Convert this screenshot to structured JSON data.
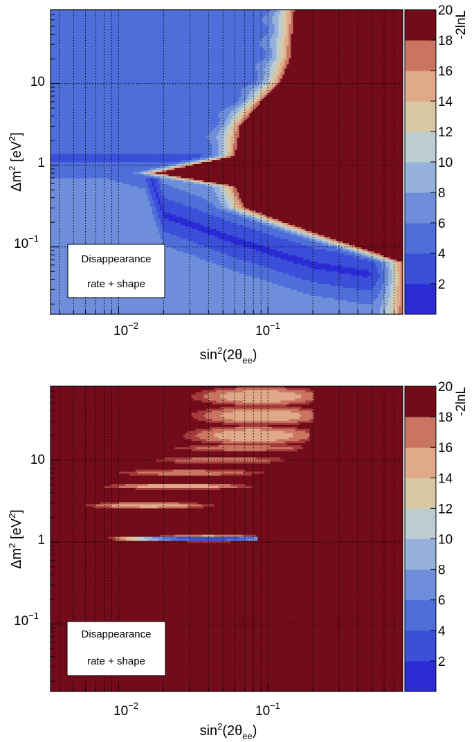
{
  "colors": {
    "excluded": "#730C1A",
    "frame": "#000000",
    "grid": "#000000",
    "legend_bg": "#ffffff"
  },
  "colorbar": {
    "label": "-2lnL",
    "ticks": [
      "2",
      "4",
      "6",
      "8",
      "10",
      "12",
      "14",
      "16",
      "18",
      "20"
    ],
    "range": [
      0,
      20
    ],
    "levels": [
      "#2B2BD6",
      "#3B4FD9",
      "#4F6ED9",
      "#6E8EDB",
      "#96B2DC",
      "#BCCDCF",
      "#D8C7A3",
      "#DFA98A",
      "#C97562",
      "#A53B3B",
      "#730C1A"
    ]
  },
  "chart_data": [
    {
      "type": "heatmap",
      "title": "",
      "xlabel": "sin²(2θee)",
      "ylabel": "Δm² [eV²]",
      "xscale": "log",
      "yscale": "log",
      "xlim": [
        0.0035,
        0.8
      ],
      "ylim": [
        0.015,
        80
      ],
      "xticks": [
        {
          "value": 0.01,
          "base": "10",
          "exp": "−2"
        },
        {
          "value": 0.1,
          "base": "10",
          "exp": "−1"
        }
      ],
      "yticks": [
        {
          "value": 0.1,
          "base": "10",
          "exp": "−1"
        },
        {
          "value": 1,
          "base": "1",
          "exp": ""
        },
        {
          "value": 10,
          "base": "10",
          "exp": ""
        }
      ],
      "legend": [
        "Disappearance",
        "rate + shape"
      ],
      "legend_placement": "bottom-left",
      "grid": true,
      "z_label": "-2lnL",
      "z_range": [
        0,
        20
      ],
      "allowed_background_level": 5,
      "minimum": {
        "x": 0.015,
        "dm2": 1.2,
        "z": 1
      },
      "boundary": [
        {
          "dm2": 80,
          "x": 0.15
        },
        {
          "dm2": 20,
          "x": 0.14
        },
        {
          "dm2": 10,
          "x": 0.12
        },
        {
          "dm2": 6,
          "x": 0.09
        },
        {
          "dm2": 3,
          "x": 0.065
        },
        {
          "dm2": 1.3,
          "x": 0.06
        },
        {
          "dm2": 0.8,
          "x": 0.018
        },
        {
          "dm2": 0.55,
          "x": 0.06
        },
        {
          "dm2": 0.3,
          "x": 0.07
        },
        {
          "dm2": 0.15,
          "x": 0.2
        },
        {
          "dm2": 0.065,
          "x": 0.8
        }
      ],
      "minimum_valley": [
        {
          "dm2": 2.5,
          "x": 0.0035
        },
        {
          "dm2": 1.2,
          "x": 0.015
        },
        {
          "dm2": 0.25,
          "x": 0.02
        },
        {
          "dm2": 0.12,
          "x": 0.06
        },
        {
          "dm2": 0.06,
          "x": 0.2
        },
        {
          "dm2": 0.04,
          "x": 0.8
        }
      ]
    },
    {
      "type": "heatmap",
      "title": "",
      "xlabel": "sin²(2θee)",
      "ylabel": "Δm² [eV²]",
      "xscale": "log",
      "yscale": "log",
      "xlim": [
        0.0035,
        0.8
      ],
      "ylim": [
        0.015,
        80
      ],
      "xticks": [
        {
          "value": 0.01,
          "base": "10",
          "exp": "−2"
        },
        {
          "value": 0.1,
          "base": "10",
          "exp": "−1"
        }
      ],
      "yticks": [
        {
          "value": 0.1,
          "base": "10",
          "exp": "−1"
        },
        {
          "value": 1,
          "base": "1",
          "exp": ""
        },
        {
          "value": 10,
          "base": "10",
          "exp": ""
        }
      ],
      "legend": [
        "Disappearance",
        "rate + shape"
      ],
      "legend_placement": "bottom-left",
      "grid": true,
      "z_label": "-2lnL",
      "z_range": [
        0,
        20
      ],
      "allowed_background_level": 10,
      "minimum": {
        "x": 0.04,
        "dm2": 1.1,
        "z": 1
      },
      "islands": [
        {
          "dm2": 1.1,
          "x_min": 0.0035,
          "x_max": 0.085,
          "x_center": 0.04,
          "z_center": 1
        },
        {
          "dm2": 2.8,
          "x_min": 0.006,
          "x_max": 0.045,
          "x_center": 0.016,
          "z_center": 14
        },
        {
          "dm2": 4.8,
          "x_min": 0.008,
          "x_max": 0.08,
          "x_center": 0.025,
          "z_center": 14
        },
        {
          "dm2": 7,
          "x_min": 0.01,
          "x_max": 0.1,
          "x_center": 0.03,
          "z_center": 16
        },
        {
          "dm2": 10,
          "x_min": 0.016,
          "x_max": 0.13,
          "x_center": 0.05,
          "z_center": 16
        },
        {
          "dm2": 14,
          "x_min": 0.02,
          "x_max": 0.17,
          "x_center": 0.07,
          "z_center": 16
        },
        {
          "dm2": 20,
          "x_min": 0.022,
          "x_max": 0.19,
          "x_center": 0.08,
          "z_center": 14
        },
        {
          "dm2": 35,
          "x_min": 0.023,
          "x_max": 0.2,
          "x_center": 0.09,
          "z_center": 14
        },
        {
          "dm2": 60,
          "x_min": 0.023,
          "x_max": 0.2,
          "x_center": 0.09,
          "z_center": 14
        }
      ]
    }
  ]
}
